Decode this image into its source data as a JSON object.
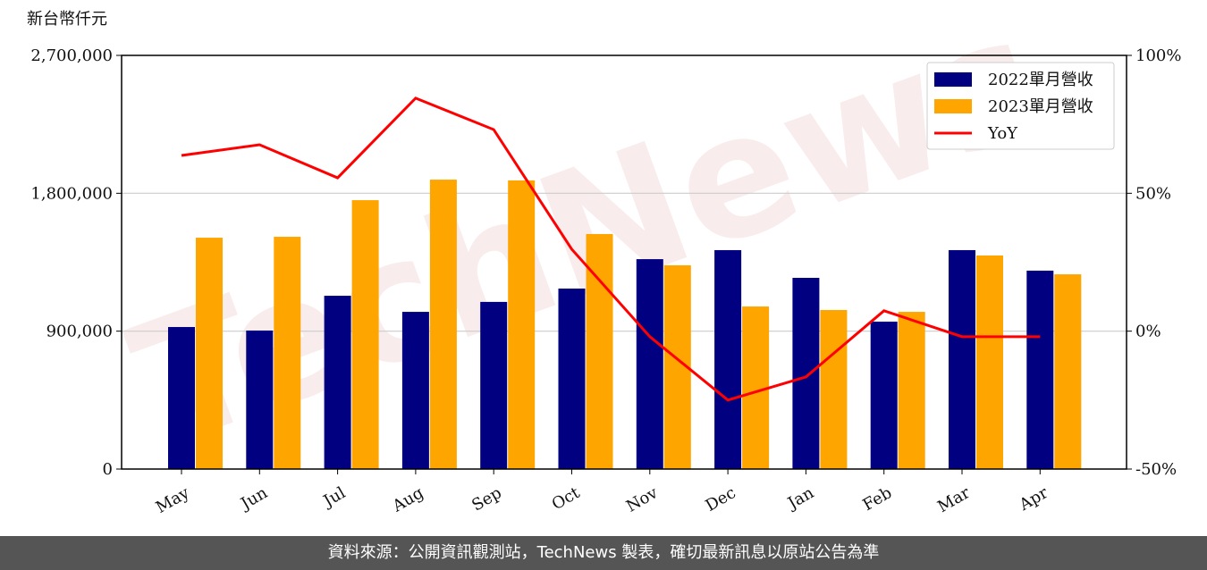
{
  "chart_data": {
    "type": "bar_line",
    "y_label": "新台幣仟元",
    "watermark": "TechNews",
    "categories": [
      "May",
      "Jun",
      "Jul",
      "Aug",
      "Sep",
      "Oct",
      "Nov",
      "Dec",
      "Jan",
      "Feb",
      "Mar",
      "Apr"
    ],
    "series": [
      {
        "name": "2022單月營收",
        "color": "#000080",
        "values": [
          927000,
          904000,
          1131000,
          1026000,
          1091000,
          1178000,
          1370000,
          1429000,
          1248000,
          962000,
          1429000,
          1295000
        ]
      },
      {
        "name": "2023單月營收",
        "color": "#ffa500",
        "values": [
          1510000,
          1516000,
          1755000,
          1889000,
          1884000,
          1534000,
          1330000,
          1061000,
          1038000,
          1026000,
          1394000,
          1271000
        ]
      },
      {
        "name": "YoY",
        "color": "#ff0000",
        "axis": "y2",
        "values": [
          63.7,
          67.6,
          55.6,
          84.5,
          73.1,
          29.7,
          -2,
          -25,
          -16.6,
          7.4,
          -2,
          -2
        ]
      }
    ],
    "ylim": [
      0,
      2700000
    ],
    "yticks": [
      {
        "value": 0,
        "label": "0"
      },
      {
        "value": 900000,
        "label": "900,000"
      },
      {
        "value": 1800000,
        "label": "1,800,000"
      },
      {
        "value": 2700000,
        "label": "2,700,000"
      }
    ],
    "y2lim": [
      -50,
      100
    ],
    "y2ticks": [
      {
        "value": -50,
        "label": "-50%"
      },
      {
        "value": 0,
        "label": "0%"
      },
      {
        "value": 50,
        "label": "50%"
      },
      {
        "value": 100,
        "label": "100%"
      }
    ],
    "grid": true,
    "legend": "upper right"
  },
  "footer": "資料來源：公開資訊觀測站，TechNews 製表，確切最新訊息以原站公告為準"
}
